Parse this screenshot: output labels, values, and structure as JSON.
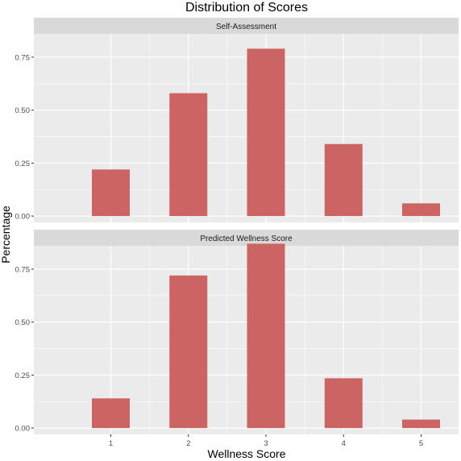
{
  "chart_data": {
    "type": "bar",
    "title": "Distribution of Scores",
    "xlabel": "Wellness Score",
    "ylabel": "Percentage",
    "categories": [
      "1",
      "2",
      "3",
      "4",
      "5"
    ],
    "ylim": [
      -0.03,
      0.86
    ],
    "yticks": [
      "0.00",
      "0.25",
      "0.50",
      "0.75"
    ],
    "grid": true,
    "legend": "none",
    "bar_color": "#cd6464",
    "panel_background": "#ebebeb",
    "strip_background": "#d9d9d9",
    "panels": [
      {
        "name": "Self-Assessment",
        "values": [
          0.22,
          0.58,
          0.79,
          0.34,
          0.06
        ]
      },
      {
        "name": "Predicted Wellness Score",
        "values": [
          0.14,
          0.72,
          0.87,
          0.235,
          0.04
        ]
      }
    ]
  }
}
